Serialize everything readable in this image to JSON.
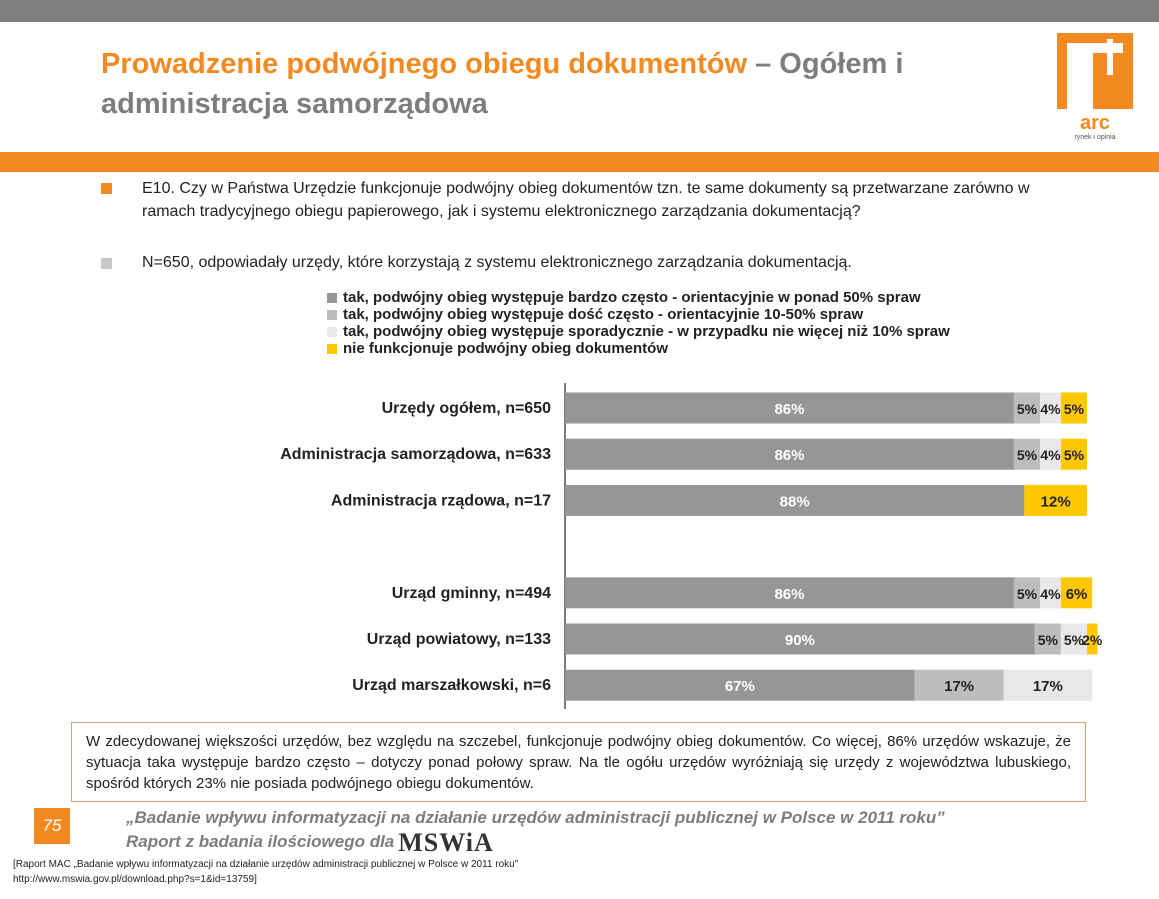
{
  "title": {
    "part1": "Prowadzenie podwójnego obiegu dokumentów",
    "part2": " – Ogółem i administracja samorządowa"
  },
  "logo": {
    "text": "arc",
    "subtext": "rynek i opinia"
  },
  "question": "E10. Czy w Państwa Urzędzie funkcjonuje podwójny obieg dokumentów tzn. te same dokumenty są przetwarzane zarówno w ramach tradycyjnego obiegu papierowego, jak i systemu elektronicznego zarządzania dokumentacją?",
  "sample": "N=650, odpowiadały urzędy, które korzystają z systemu elektronicznego zarządzania dokumentacją.",
  "colors": {
    "orange": "#f28a21",
    "gray_dark": "#969696",
    "gray_mid": "#bdbdbd",
    "gray_light": "#e8e8e8",
    "yellow": "#ffc800"
  },
  "chart_data": {
    "type": "bar",
    "orientation": "horizontal",
    "stacked": true,
    "percent_stacked": true,
    "categories": [
      "Urzędy ogółem, n=650",
      "Administracja samorządowa, n=633",
      "Administracja rządowa, n=17",
      "",
      "Urząd gminny, n=494",
      "Urząd powiatowy, n=133",
      "Urząd marszałkowski, n=6"
    ],
    "series": [
      {
        "name": "tak, podwójny obieg występuje bardzo często - orientacyjnie w ponad 50% spraw",
        "color": "#969696",
        "values": [
          86,
          86,
          88,
          null,
          86,
          90,
          67
        ]
      },
      {
        "name": "tak, podwójny obieg występuje dość często - orientacyjnie 10-50% spraw",
        "color": "#bdbdbd",
        "values": [
          5,
          5,
          0,
          null,
          5,
          5,
          17
        ]
      },
      {
        "name": "tak, podwójny obieg występuje sporadycznie - w przypadku nie więcej niż 10% spraw",
        "color": "#e8e8e8",
        "values": [
          4,
          4,
          0,
          null,
          4,
          5,
          17
        ]
      },
      {
        "name": "nie funkcjonuje podwójny obieg dokumentów",
        "color": "#ffc800",
        "values": [
          5,
          5,
          12,
          null,
          6,
          2,
          0
        ]
      }
    ],
    "legend_position": "top",
    "grid": false
  },
  "note": "W zdecydowanej większości urzędów, bez względu na szczebel, funkcjonuje podwójny obieg dokumentów. Co więcej, 86% urzędów wskazuje, że sytuacja taka występuje bardzo często – dotyczy ponad połowy spraw.  Na tle ogółu urzędów wyróżniają się urzędy z województwa lubuskiego, spośród których 23% nie posiada podwójnego obiegu dokumentów.",
  "page_number": "75",
  "report": {
    "line1": "„Badanie wpływu informatyzacji na działanie urzędów administracji publicznej w Polsce w 2011 roku”",
    "line2": "Raport z badania ilościowego dla",
    "brand": "MSWiA"
  },
  "source": {
    "line1": "[Raport MAC „Badanie wpływu informatyzacji na działanie urzędów administracji publicznej w Polsce w 2011 roku”",
    "line2": "http://www.mswia.gov.pl/download.php?s=1&id=13759]"
  }
}
